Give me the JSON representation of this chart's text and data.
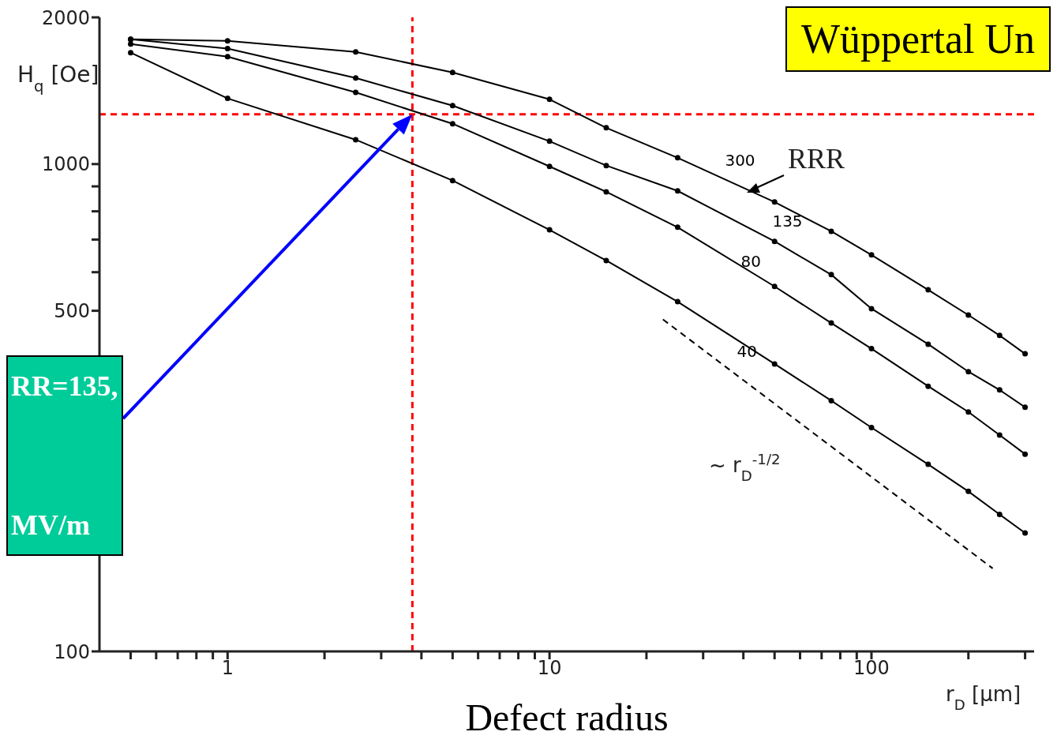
{
  "chart_data": {
    "type": "line",
    "title": "Wüppertal Un",
    "xlabel": "Defect radius",
    "ylabel": "H$_{q}$ [Oe]",
    "annotations": [
      "r$_{D}$ [µm]",
      "~ r$_{D}$$^{-1/2}$",
      "RRR",
      "RR=135,",
      "MV/m"
    ],
    "log": "xy",
    "grid": false,
    "legend": false,
    "marker": "circle",
    "xlim": [
      0.4,
      320
    ],
    "xticks": [
      {
        "value": 0.5,
        "label": null
      },
      {
        "value": 0.6,
        "label": null
      },
      {
        "value": 0.7,
        "label": null
      },
      {
        "value": 0.8,
        "label": null
      },
      {
        "value": 0.9,
        "label": null
      },
      1,
      {
        "value": 2,
        "label": null
      },
      {
        "value": 3,
        "label": null
      },
      {
        "value": 4,
        "label": null
      },
      {
        "value": 5,
        "label": null
      },
      {
        "value": 6,
        "label": null
      },
      {
        "value": 7,
        "label": null
      },
      {
        "value": 8,
        "label": null
      },
      {
        "value": 9,
        "label": null
      },
      10,
      {
        "value": 20,
        "label": null
      },
      {
        "value": 30,
        "label": null
      },
      {
        "value": 40,
        "label": null
      },
      {
        "value": 50,
        "label": null
      },
      {
        "value": 60,
        "label": null
      },
      {
        "value": 70,
        "label": null
      },
      {
        "value": 80,
        "label": null
      },
      {
        "value": 90,
        "label": null
      },
      100,
      {
        "value": 200,
        "label": null
      },
      {
        "value": 300,
        "label": null
      }
    ],
    "ylim": [
      100,
      2000
    ],
    "yticks": [
      100,
      {
        "value": 200,
        "label": null
      },
      {
        "value": 300,
        "label": null
      },
      {
        "value": 400,
        "label": null
      },
      500,
      {
        "value": 600,
        "label": null
      },
      {
        "value": 700,
        "label": null
      },
      {
        "value": 800,
        "label": null
      },
      {
        "value": 900,
        "label": null
      },
      1000,
      2000
    ],
    "ref_lines": [
      {
        "axis": "y",
        "value": 1265,
        "color": "#ff0000",
        "line_style": "dashed"
      },
      {
        "axis": "x",
        "value": 3.75,
        "color": "#ff0000",
        "line_style": "dashed"
      }
    ],
    "series": [
      {
        "name": "300",
        "color": "#000000",
        "x": [
          0.5,
          1,
          2.5,
          5,
          10,
          15,
          25,
          50,
          75,
          100,
          150,
          200,
          250,
          300
        ],
        "values": [
          1803,
          1790,
          1699,
          1542,
          1358,
          1187,
          1030,
          836,
          728,
          651,
          552,
          490,
          445,
          408
        ]
      },
      {
        "name": "135",
        "color": "#000000",
        "x": [
          0.5,
          1,
          2.5,
          5,
          10,
          15,
          25,
          50,
          75,
          100,
          150,
          200,
          250,
          300
        ],
        "values": [
          1803,
          1726,
          1502,
          1318,
          1114,
          993,
          881,
          694,
          593,
          505,
          427,
          375,
          344,
          317
        ]
      },
      {
        "name": "80",
        "color": "#000000",
        "x": [
          0.5,
          1,
          2.5,
          5,
          10,
          15,
          25,
          50,
          75,
          100,
          150,
          200,
          250,
          300
        ],
        "values": [
          1763,
          1661,
          1403,
          1210,
          989,
          877,
          742,
          561,
          472,
          418,
          350,
          310,
          278,
          254
        ]
      },
      {
        "name": "40",
        "color": "#000000",
        "x": [
          0.5,
          1,
          2.5,
          5,
          10,
          15,
          25,
          50,
          75,
          100,
          150,
          200,
          250,
          300
        ],
        "values": [
          1693,
          1364,
          1122,
          925,
          733,
          634,
          522,
          389,
          327,
          288,
          242,
          213,
          191,
          175
        ]
      },
      {
        "type": "line",
        "color": "#000000",
        "line_style": "dashed",
        "marker": "none",
        "x": [
          22.5,
          238
        ],
        "values": [
          480,
          148
        ]
      }
    ]
  }
}
